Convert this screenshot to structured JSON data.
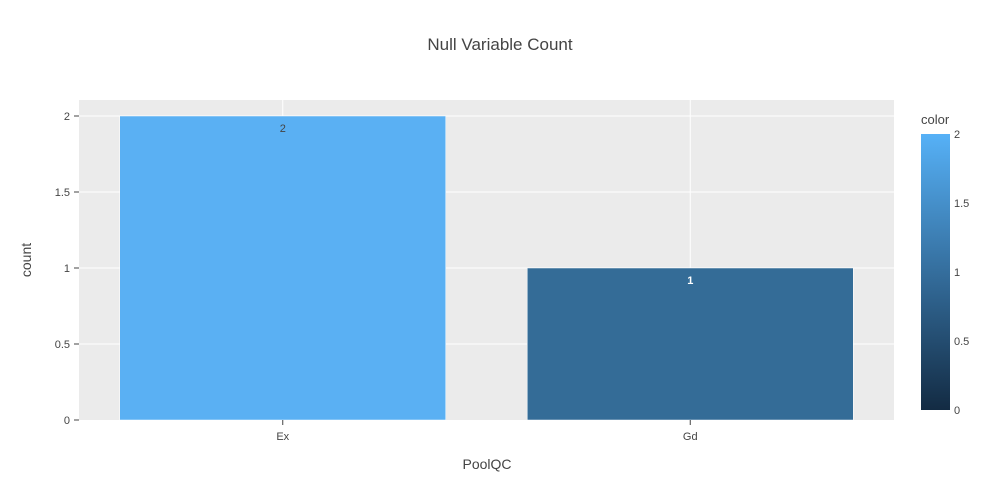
{
  "chart_data": {
    "type": "bar",
    "title": "Null Variable Count",
    "xlabel": "PoolQC",
    "ylabel": "count",
    "categories": [
      "Ex",
      "Gd"
    ],
    "values": [
      2,
      1
    ],
    "data_labels": [
      "2",
      "1"
    ],
    "bar_colors": [
      "#5ab0f3",
      "#346c97"
    ],
    "ylim": [
      0,
      2
    ],
    "yticks": [
      0,
      0.5,
      1,
      1.5,
      2
    ],
    "ytick_labels": [
      "0",
      "0.5",
      "1",
      "1.5",
      "2"
    ],
    "grid": true,
    "plot_background": "#ebebeb",
    "colorbar": {
      "title": "color",
      "range": [
        0,
        2
      ],
      "ticks": [
        0,
        0.5,
        1,
        1.5,
        2
      ],
      "tick_labels": [
        "0",
        "0.5",
        "1",
        "1.5",
        "2"
      ],
      "color_low": "#132b43",
      "color_high": "#56b1f7"
    }
  }
}
